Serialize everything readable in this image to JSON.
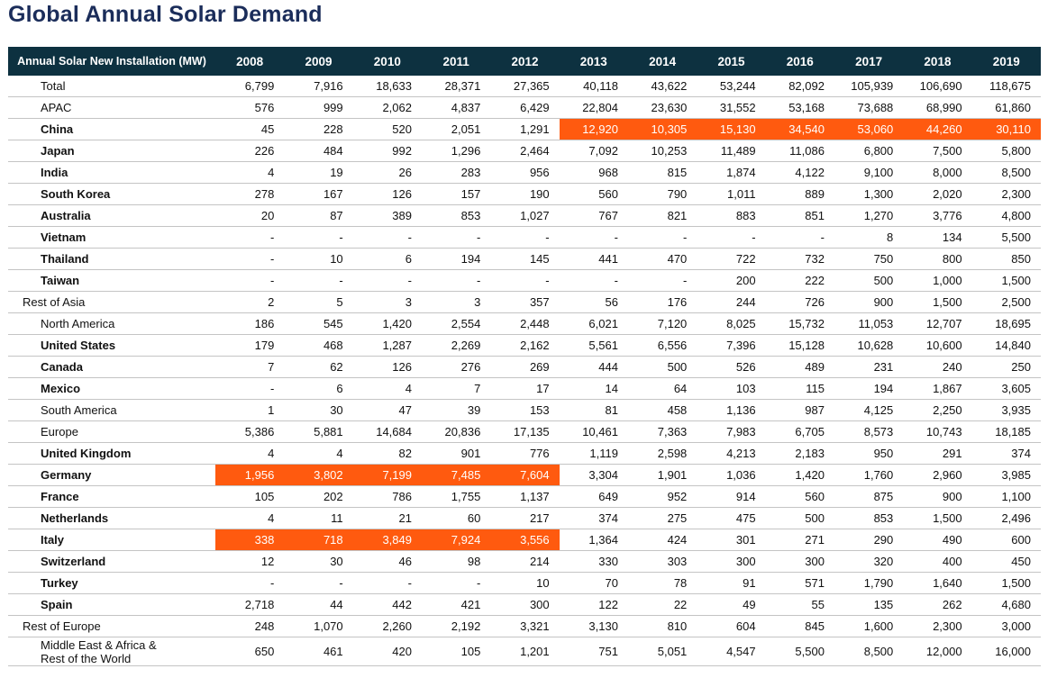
{
  "title": "Global Annual Solar Demand",
  "chart_data": {
    "type": "table",
    "title": "Global Annual Solar Demand",
    "header_label": "Annual Solar New Installation (MW)",
    "years": [
      "2008",
      "2009",
      "2010",
      "2011",
      "2012",
      "2013",
      "2014",
      "2015",
      "2016",
      "2017",
      "2018",
      "2019"
    ],
    "highlight_color": "#ff5a0f",
    "rows": [
      {
        "label": "Total",
        "level": "summary",
        "values": [
          "6,799",
          "7,916",
          "18,633",
          "28,371",
          "27,365",
          "40,118",
          "43,622",
          "53,244",
          "82,092",
          "105,939",
          "106,690",
          "118,675"
        ]
      },
      {
        "label": "APAC",
        "level": "summary",
        "values": [
          "576",
          "999",
          "2,062",
          "4,837",
          "6,429",
          "22,804",
          "23,630",
          "31,552",
          "53,168",
          "73,688",
          "68,990",
          "61,860"
        ]
      },
      {
        "label": "China",
        "level": "sub",
        "values": [
          "45",
          "228",
          "520",
          "2,051",
          "1,291",
          "12,920",
          "10,305",
          "15,130",
          "34,540",
          "53,060",
          "44,260",
          "30,110"
        ],
        "highlight": [
          5,
          6,
          7,
          8,
          9,
          10,
          11
        ]
      },
      {
        "label": "Japan",
        "level": "sub",
        "values": [
          "226",
          "484",
          "992",
          "1,296",
          "2,464",
          "7,092",
          "10,253",
          "11,489",
          "11,086",
          "6,800",
          "7,500",
          "5,800"
        ]
      },
      {
        "label": "India",
        "level": "sub",
        "values": [
          "4",
          "19",
          "26",
          "283",
          "956",
          "968",
          "815",
          "1,874",
          "4,122",
          "9,100",
          "8,000",
          "8,500"
        ]
      },
      {
        "label": "South Korea",
        "level": "sub",
        "values": [
          "278",
          "167",
          "126",
          "157",
          "190",
          "560",
          "790",
          "1,011",
          "889",
          "1,300",
          "2,020",
          "2,300"
        ]
      },
      {
        "label": "Australia",
        "level": "sub",
        "values": [
          "20",
          "87",
          "389",
          "853",
          "1,027",
          "767",
          "821",
          "883",
          "851",
          "1,270",
          "3,776",
          "4,800"
        ]
      },
      {
        "label": "Vietnam",
        "level": "sub",
        "values": [
          "-",
          "-",
          "-",
          "-",
          "-",
          "-",
          "-",
          "-",
          "-",
          "8",
          "134",
          "5,500"
        ]
      },
      {
        "label": "Thailand",
        "level": "sub",
        "values": [
          "-",
          "10",
          "6",
          "194",
          "145",
          "441",
          "470",
          "722",
          "732",
          "750",
          "800",
          "850"
        ]
      },
      {
        "label": "Taiwan",
        "level": "sub",
        "values": [
          "-",
          "-",
          "-",
          "-",
          "-",
          "-",
          "-",
          "200",
          "222",
          "500",
          "1,000",
          "1,500"
        ]
      },
      {
        "label": "Rest of Asia",
        "level": "top",
        "values": [
          "2",
          "5",
          "3",
          "3",
          "357",
          "56",
          "176",
          "244",
          "726",
          "900",
          "1,500",
          "2,500"
        ]
      },
      {
        "label": "North America",
        "level": "summary",
        "values": [
          "186",
          "545",
          "1,420",
          "2,554",
          "2,448",
          "6,021",
          "7,120",
          "8,025",
          "15,732",
          "11,053",
          "12,707",
          "18,695"
        ]
      },
      {
        "label": "United States",
        "level": "sub",
        "values": [
          "179",
          "468",
          "1,287",
          "2,269",
          "2,162",
          "5,561",
          "6,556",
          "7,396",
          "15,128",
          "10,628",
          "10,600",
          "14,840"
        ]
      },
      {
        "label": "Canada",
        "level": "sub",
        "values": [
          "7",
          "62",
          "126",
          "276",
          "269",
          "444",
          "500",
          "526",
          "489",
          "231",
          "240",
          "250"
        ]
      },
      {
        "label": "Mexico",
        "level": "sub",
        "values": [
          "-",
          "6",
          "4",
          "7",
          "17",
          "14",
          "64",
          "103",
          "115",
          "194",
          "1,867",
          "3,605"
        ]
      },
      {
        "label": "South America",
        "level": "summary",
        "values": [
          "1",
          "30",
          "47",
          "39",
          "153",
          "81",
          "458",
          "1,136",
          "987",
          "4,125",
          "2,250",
          "3,935"
        ]
      },
      {
        "label": "Europe",
        "level": "summary",
        "values": [
          "5,386",
          "5,881",
          "14,684",
          "20,836",
          "17,135",
          "10,461",
          "7,363",
          "7,983",
          "6,705",
          "8,573",
          "10,743",
          "18,185"
        ]
      },
      {
        "label": "United Kingdom",
        "level": "sub",
        "values": [
          "4",
          "4",
          "82",
          "901",
          "776",
          "1,119",
          "2,598",
          "4,213",
          "2,183",
          "950",
          "291",
          "374"
        ]
      },
      {
        "label": "Germany",
        "level": "sub",
        "values": [
          "1,956",
          "3,802",
          "7,199",
          "7,485",
          "7,604",
          "3,304",
          "1,901",
          "1,036",
          "1,420",
          "1,760",
          "2,960",
          "3,985"
        ],
        "highlight": [
          0,
          1,
          2,
          3,
          4
        ]
      },
      {
        "label": "France",
        "level": "sub",
        "values": [
          "105",
          "202",
          "786",
          "1,755",
          "1,137",
          "649",
          "952",
          "914",
          "560",
          "875",
          "900",
          "1,100"
        ]
      },
      {
        "label": "Netherlands",
        "level": "sub",
        "values": [
          "4",
          "11",
          "21",
          "60",
          "217",
          "374",
          "275",
          "475",
          "500",
          "853",
          "1,500",
          "2,496"
        ]
      },
      {
        "label": "Italy",
        "level": "sub",
        "values": [
          "338",
          "718",
          "3,849",
          "7,924",
          "3,556",
          "1,364",
          "424",
          "301",
          "271",
          "290",
          "490",
          "600"
        ],
        "highlight": [
          0,
          1,
          2,
          3,
          4
        ]
      },
      {
        "label": "Switzerland",
        "level": "sub",
        "values": [
          "12",
          "30",
          "46",
          "98",
          "214",
          "330",
          "303",
          "300",
          "300",
          "320",
          "400",
          "450"
        ]
      },
      {
        "label": "Turkey",
        "level": "sub",
        "values": [
          "-",
          "-",
          "-",
          "-",
          "10",
          "70",
          "78",
          "91",
          "571",
          "1,790",
          "1,640",
          "1,500"
        ]
      },
      {
        "label": "Spain",
        "level": "sub",
        "values": [
          "2,718",
          "44",
          "442",
          "421",
          "300",
          "122",
          "22",
          "49",
          "55",
          "135",
          "262",
          "4,680"
        ]
      },
      {
        "label": "Rest of Europe",
        "level": "top",
        "values": [
          "248",
          "1,070",
          "2,260",
          "2,192",
          "3,321",
          "3,130",
          "810",
          "604",
          "845",
          "1,600",
          "2,300",
          "3,000"
        ]
      },
      {
        "label": "Middle East & Africa & Rest of the World",
        "level": "summary",
        "values": [
          "650",
          "461",
          "420",
          "105",
          "1,201",
          "751",
          "5,051",
          "4,547",
          "5,500",
          "8,500",
          "12,000",
          "16,000"
        ],
        "label_lines": [
          "Middle East & Africa &",
          "Rest of the World"
        ]
      }
    ]
  }
}
